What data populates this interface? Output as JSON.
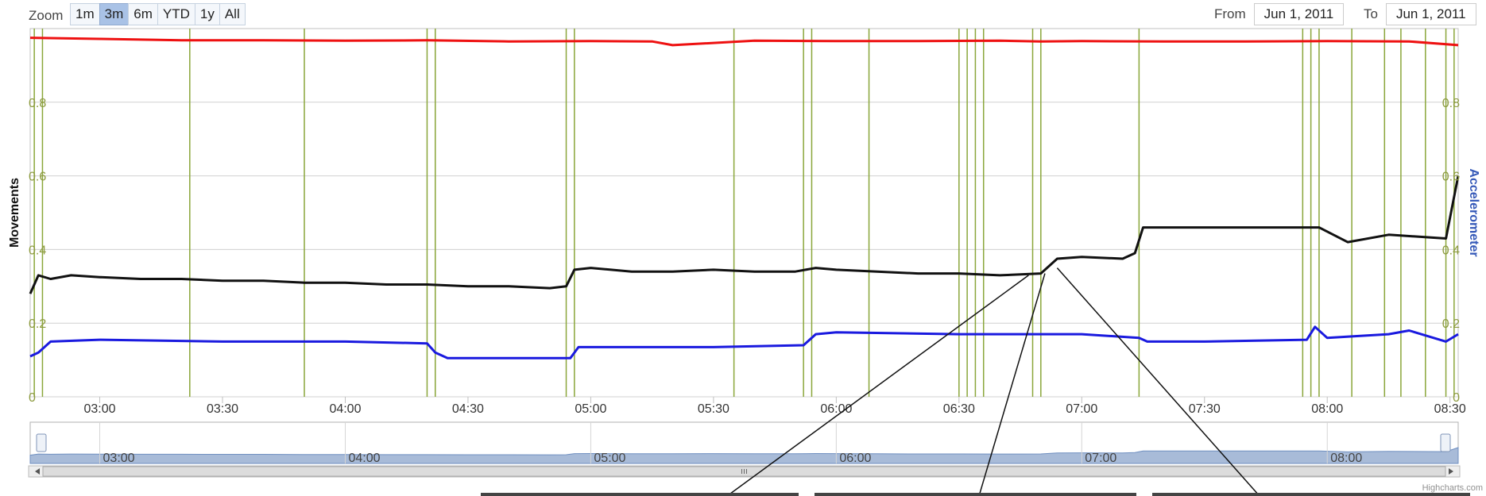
{
  "zoom": {
    "label": "Zoom",
    "buttons": [
      "1m",
      "3m",
      "6m",
      "YTD",
      "1y",
      "All"
    ],
    "selected": "3m"
  },
  "range": {
    "from_label": "From",
    "from_value": "Jun 1, 2011",
    "to_label": "To",
    "to_value": "Jun 1, 2011"
  },
  "credit": "Highcharts.com",
  "chart_data": {
    "type": "line",
    "title": "",
    "ylabel_left": "Movements",
    "ylabel_right": "Accelerometer",
    "xlim": [
      "02:43",
      "08:32"
    ],
    "ylim": [
      0,
      1
    ],
    "y_ticks": [
      "0",
      "0.2",
      "0.4",
      "0.6",
      "0.8"
    ],
    "x_ticks": [
      "03:00",
      "03:30",
      "04:00",
      "04:30",
      "05:00",
      "05:30",
      "06:00",
      "06:30",
      "07:00",
      "07:30",
      "08:00",
      "08:30"
    ],
    "grid": true,
    "colors": {
      "red": "#ee1111",
      "black": "#111111",
      "blue": "#1a1adf",
      "event": "#8aa63a",
      "ticklabel": "#8c9a3e",
      "right_title": "#3458b8",
      "navigator_fill": "#a8bbd8"
    },
    "event_markers_x": [
      "02:44",
      "02:46",
      "03:22",
      "03:50",
      "04:20",
      "04:22",
      "04:54",
      "04:56",
      "05:35",
      "05:52",
      "05:54",
      "06:08",
      "06:30",
      "06:32",
      "06:34",
      "06:36",
      "06:48",
      "06:50",
      "07:14",
      "07:54",
      "07:56",
      "07:58",
      "08:06",
      "08:14",
      "08:18",
      "08:24",
      "08:29",
      "08:31"
    ],
    "series": [
      {
        "color": "red",
        "x": [
          "02:43",
          "03:00",
          "03:20",
          "03:40",
          "04:00",
          "04:20",
          "04:40",
          "05:00",
          "05:15",
          "05:20",
          "05:40",
          "06:00",
          "06:20",
          "06:40",
          "06:50",
          "07:00",
          "07:20",
          "07:40",
          "08:00",
          "08:20",
          "08:32"
        ],
        "values": [
          0.975,
          0.972,
          0.968,
          0.968,
          0.967,
          0.968,
          0.965,
          0.966,
          0.965,
          0.955,
          0.967,
          0.966,
          0.966,
          0.967,
          0.965,
          0.966,
          0.965,
          0.965,
          0.966,
          0.965,
          0.955
        ]
      },
      {
        "color": "black",
        "x": [
          "02:43",
          "02:45",
          "02:48",
          "02:53",
          "03:00",
          "03:10",
          "03:20",
          "03:30",
          "03:40",
          "03:50",
          "04:00",
          "04:10",
          "04:20",
          "04:30",
          "04:40",
          "04:50",
          "04:54",
          "04:56",
          "05:00",
          "05:10",
          "05:20",
          "05:30",
          "05:40",
          "05:50",
          "05:55",
          "06:00",
          "06:10",
          "06:20",
          "06:30",
          "06:40",
          "06:50",
          "06:54",
          "07:00",
          "07:10",
          "07:13",
          "07:15",
          "07:30",
          "07:50",
          "07:58",
          "08:05",
          "08:15",
          "08:29",
          "08:32"
        ],
        "values": [
          0.28,
          0.33,
          0.32,
          0.33,
          0.325,
          0.32,
          0.32,
          0.315,
          0.315,
          0.31,
          0.31,
          0.305,
          0.305,
          0.3,
          0.3,
          0.295,
          0.3,
          0.345,
          0.35,
          0.34,
          0.34,
          0.345,
          0.34,
          0.34,
          0.35,
          0.345,
          0.34,
          0.335,
          0.335,
          0.33,
          0.335,
          0.375,
          0.38,
          0.375,
          0.39,
          0.46,
          0.46,
          0.46,
          0.46,
          0.42,
          0.44,
          0.43,
          0.6
        ]
      },
      {
        "color": "blue",
        "x": [
          "02:43",
          "02:45",
          "02:48",
          "03:00",
          "03:30",
          "04:00",
          "04:20",
          "04:22",
          "04:25",
          "04:40",
          "04:55",
          "04:57",
          "05:30",
          "05:52",
          "05:55",
          "06:00",
          "06:30",
          "06:50",
          "07:00",
          "07:14",
          "07:16",
          "07:30",
          "07:55",
          "07:57",
          "08:00",
          "08:15",
          "08:20",
          "08:29",
          "08:32"
        ],
        "values": [
          0.11,
          0.12,
          0.15,
          0.155,
          0.15,
          0.15,
          0.145,
          0.12,
          0.105,
          0.105,
          0.105,
          0.135,
          0.135,
          0.14,
          0.17,
          0.175,
          0.17,
          0.17,
          0.17,
          0.16,
          0.15,
          0.15,
          0.155,
          0.19,
          0.16,
          0.17,
          0.18,
          0.15,
          0.17
        ]
      }
    ],
    "navigator": {
      "x_ticks": [
        "03:00",
        "04:00",
        "05:00",
        "06:00",
        "07:00",
        "08:00"
      ]
    }
  }
}
